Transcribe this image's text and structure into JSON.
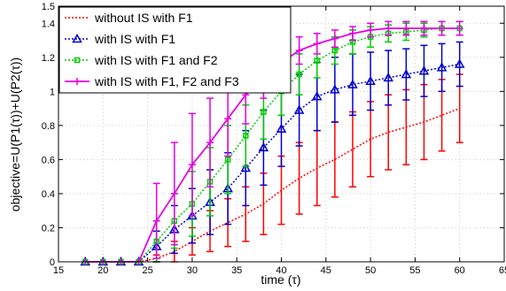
{
  "chart_data": {
    "type": "line",
    "title": "",
    "xlabel": "time (τ)",
    "ylabel": "objective=U(P1(τ))+U(P2(τ))",
    "xlim": [
      15,
      65
    ],
    "ylim": [
      0,
      1.5
    ],
    "xticks": [
      15,
      20,
      25,
      30,
      35,
      40,
      45,
      50,
      55,
      60,
      65
    ],
    "yticks": [
      0,
      0.2,
      0.4,
      0.6,
      0.8,
      1,
      1.2,
      1.4
    ],
    "x_tick_labels": [
      "15",
      "20",
      "25",
      "30",
      "35",
      "40",
      "45",
      "50",
      "55",
      "60",
      "65"
    ],
    "y_tick_labels": [
      "0",
      "0.2",
      "0.4",
      "0.6",
      "0.8",
      "1",
      "1.2",
      "1.4"
    ],
    "y_top_label": "1.5",
    "grid": true,
    "legend_position": "top-left",
    "x": [
      18,
      20,
      22,
      24,
      26,
      28,
      30,
      32,
      34,
      36,
      38,
      40,
      42,
      44,
      46,
      48,
      50,
      52,
      54,
      56,
      58,
      60
    ],
    "series": [
      {
        "name": "without IS with F1",
        "color": "#ff0000",
        "line_style": "dotted",
        "marker": "none",
        "values": [
          0,
          0,
          0,
          0,
          0.02,
          0.06,
          0.12,
          0.18,
          0.23,
          0.28,
          0.34,
          0.42,
          0.49,
          0.55,
          0.6,
          0.66,
          0.72,
          0.76,
          0.79,
          0.82,
          0.86,
          0.9
        ],
        "errors": [
          0,
          0,
          0,
          0,
          0.02,
          0.06,
          0.08,
          0.12,
          0.14,
          0.16,
          0.18,
          0.2,
          0.21,
          0.22,
          0.22,
          0.22,
          0.22,
          0.22,
          0.22,
          0.22,
          0.21,
          0.2
        ]
      },
      {
        "name": "with IS with F1",
        "color": "#0000cc",
        "line_style": "dotted",
        "marker": "triangle",
        "values": [
          0,
          0,
          0,
          0,
          0.09,
          0.19,
          0.27,
          0.35,
          0.43,
          0.55,
          0.67,
          0.78,
          0.89,
          0.97,
          1.01,
          1.04,
          1.06,
          1.08,
          1.1,
          1.12,
          1.14,
          1.16
        ],
        "errors": [
          0,
          0,
          0,
          0,
          0.09,
          0.14,
          0.16,
          0.19,
          0.21,
          0.22,
          0.22,
          0.22,
          0.21,
          0.2,
          0.19,
          0.18,
          0.17,
          0.16,
          0.15,
          0.15,
          0.14,
          0.13
        ]
      },
      {
        "name": "with IS with F1 and F2",
        "color": "#00cc00",
        "line_style": "dotted",
        "marker": "square",
        "values": [
          0,
          0,
          0,
          0,
          0.12,
          0.24,
          0.34,
          0.47,
          0.6,
          0.74,
          0.88,
          1.0,
          1.1,
          1.18,
          1.24,
          1.29,
          1.32,
          1.34,
          1.35,
          1.36,
          1.37,
          1.37
        ],
        "errors": [
          0,
          0,
          0,
          0,
          0.12,
          0.16,
          0.19,
          0.2,
          0.2,
          0.18,
          0.16,
          0.14,
          0.12,
          0.1,
          0.08,
          0.07,
          0.06,
          0.05,
          0.05,
          0.04,
          0.04,
          0.04
        ]
      },
      {
        "name": "with IS with F1, F2 and F3",
        "color": "#e600e6",
        "line_style": "solid",
        "marker": "plus",
        "values": [
          0,
          0,
          0,
          0,
          0.24,
          0.4,
          0.57,
          0.7,
          0.84,
          0.98,
          1.09,
          1.17,
          1.24,
          1.28,
          1.31,
          1.34,
          1.36,
          1.37,
          1.37,
          1.37,
          1.37,
          1.37
        ],
        "errors": [
          0,
          0,
          0,
          0,
          0.22,
          0.3,
          0.3,
          0.26,
          0.22,
          0.17,
          0.13,
          0.1,
          0.08,
          0.06,
          0.05,
          0.04,
          0.04,
          0.04,
          0.04,
          0.04,
          0.04,
          0.04
        ]
      }
    ]
  }
}
